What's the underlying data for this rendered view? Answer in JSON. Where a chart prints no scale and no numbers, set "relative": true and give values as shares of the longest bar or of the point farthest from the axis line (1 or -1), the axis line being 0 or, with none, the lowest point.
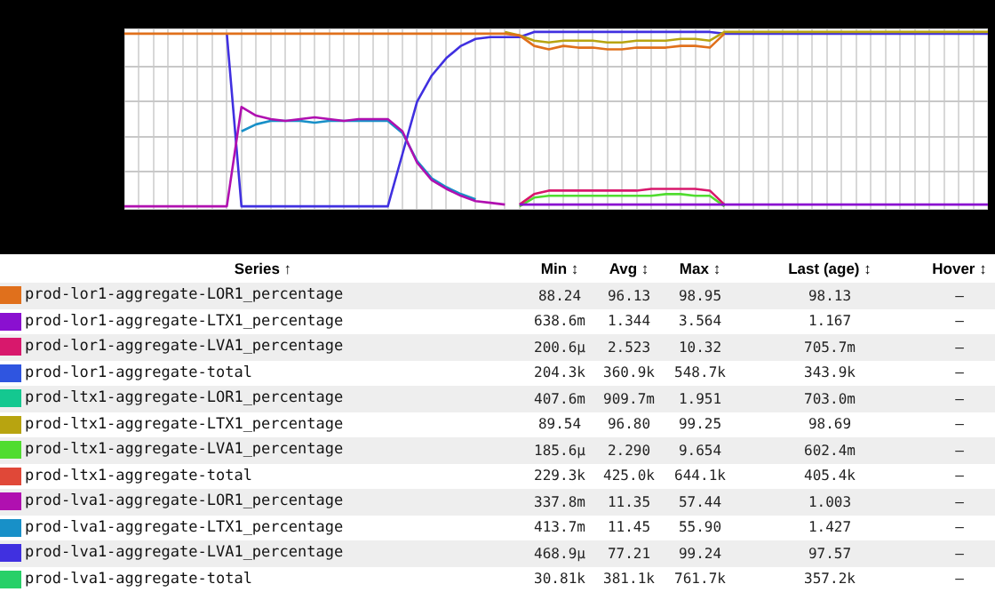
{
  "chart_data": {
    "type": "line",
    "relative": true,
    "grid": true,
    "legend": "bottom",
    "categories": [
      null,
      null,
      null,
      null,
      null,
      null,
      null,
      null,
      null,
      null,
      null,
      null,
      null,
      null,
      null,
      null,
      null,
      null,
      null,
      null,
      null,
      null,
      null,
      null,
      null,
      null,
      null,
      null,
      null,
      null,
      null,
      null,
      null,
      null,
      null,
      null,
      null,
      null,
      null,
      null,
      null,
      null,
      null,
      null,
      null,
      null,
      null,
      null,
      null,
      null,
      null,
      null,
      null,
      null,
      null,
      null,
      null,
      null,
      null,
      null
    ],
    "series": [
      {
        "name": "prod-lor1-aggregate-LOR1_percentage",
        "color": "#e0701c",
        "values": [
          0.99,
          0.99,
          0.99,
          0.99,
          0.99,
          0.99,
          0.99,
          0.99,
          0.99,
          0.99,
          0.99,
          0.99,
          0.99,
          0.99,
          0.99,
          0.99,
          0.99,
          0.99,
          0.99,
          0.99,
          0.99,
          0.99,
          0.99,
          0.99,
          0.99,
          0.99,
          0.99,
          0.98,
          0.92,
          0.9,
          0.92,
          0.91,
          0.91,
          0.9,
          0.9,
          0.91,
          0.91,
          0.91,
          0.92,
          0.92,
          0.91,
          0.99,
          null,
          null,
          null,
          null,
          null,
          null,
          null,
          null,
          null,
          null,
          null,
          null,
          null,
          null,
          null,
          null,
          null,
          null
        ]
      },
      {
        "name": "prod-lor1-aggregate-LTX1_percentage",
        "color": "#8a10d0",
        "values": [
          null,
          null,
          null,
          null,
          null,
          null,
          null,
          null,
          null,
          null,
          null,
          null,
          null,
          null,
          null,
          null,
          null,
          null,
          null,
          null,
          null,
          null,
          null,
          null,
          null,
          null,
          null,
          0.01,
          0.01,
          0.01,
          0.01,
          0.01,
          0.01,
          0.01,
          0.01,
          0.01,
          0.01,
          0.01,
          0.01,
          0.01,
          0.01,
          0.01,
          0.01,
          0.01,
          0.01,
          0.01,
          0.01,
          0.01,
          0.01,
          0.01,
          0.01,
          0.01,
          0.01,
          0.01,
          0.01,
          0.01,
          0.01,
          0.01,
          0.01,
          0.01
        ]
      },
      {
        "name": "prod-lor1-aggregate-LVA1_percentage",
        "color": "#d8186c",
        "values": [
          null,
          null,
          null,
          null,
          null,
          null,
          null,
          null,
          null,
          null,
          null,
          null,
          null,
          null,
          null,
          null,
          null,
          null,
          null,
          null,
          null,
          null,
          null,
          null,
          null,
          null,
          null,
          0.01,
          0.07,
          0.09,
          0.09,
          0.09,
          0.09,
          0.09,
          0.09,
          0.09,
          0.1,
          0.1,
          0.1,
          0.1,
          0.09,
          0.01,
          null,
          null,
          null,
          null,
          null,
          null,
          null,
          null,
          null,
          null,
          null,
          null,
          null,
          null,
          null,
          null,
          null,
          null
        ]
      },
      {
        "name": "prod-lor1-aggregate-total",
        "color": "#2f55e0",
        "values": [
          null,
          null,
          null,
          null,
          null,
          null,
          null,
          null,
          null,
          null,
          null,
          null,
          null,
          null,
          null,
          null,
          null,
          null,
          null,
          null,
          null,
          null,
          null,
          null,
          null,
          null,
          null,
          null,
          null,
          null,
          null,
          null,
          null,
          null,
          null,
          null,
          null,
          null,
          null,
          null,
          null,
          null,
          null,
          null,
          null,
          null,
          null,
          null,
          null,
          null,
          null,
          null,
          null,
          null,
          null,
          null,
          null,
          null,
          null,
          null
        ]
      },
      {
        "name": "prod-ltx1-aggregate-LOR1_percentage",
        "color": "#14c890",
        "values": [
          null,
          null,
          null,
          null,
          null,
          null,
          null,
          null,
          null,
          null,
          null,
          null,
          null,
          null,
          null,
          null,
          null,
          null,
          null,
          null,
          null,
          null,
          null,
          null,
          null,
          null,
          null,
          null,
          null,
          null,
          null,
          null,
          null,
          null,
          null,
          null,
          null,
          null,
          null,
          null,
          null,
          null,
          null,
          null,
          null,
          null,
          null,
          null,
          null,
          null,
          null,
          null,
          null,
          null,
          null,
          null,
          null,
          null,
          null,
          null
        ]
      },
      {
        "name": "prod-ltx1-aggregate-LTX1_percentage",
        "color": "#b8a410",
        "values": [
          null,
          null,
          null,
          null,
          null,
          null,
          null,
          null,
          null,
          null,
          null,
          null,
          null,
          null,
          null,
          null,
          null,
          null,
          null,
          null,
          null,
          null,
          null,
          null,
          null,
          null,
          1,
          0.98,
          0.95,
          0.94,
          0.95,
          0.95,
          0.95,
          0.94,
          0.94,
          0.95,
          0.95,
          0.95,
          0.96,
          0.96,
          0.95,
          1,
          1,
          1,
          1,
          1,
          1,
          1,
          1,
          1,
          1,
          1,
          1,
          1,
          1,
          1,
          1,
          1,
          1,
          1
        ]
      },
      {
        "name": "prod-ltx1-aggregate-LVA1_percentage",
        "color": "#50dc30",
        "values": [
          null,
          null,
          null,
          null,
          null,
          null,
          null,
          null,
          null,
          null,
          null,
          null,
          null,
          null,
          null,
          null,
          null,
          null,
          null,
          null,
          null,
          null,
          null,
          null,
          null,
          null,
          null,
          0,
          0.05,
          0.06,
          0.06,
          0.06,
          0.06,
          0.06,
          0.06,
          0.06,
          0.06,
          0.07,
          0.07,
          0.06,
          0.06,
          0,
          null,
          null,
          null,
          null,
          null,
          null,
          null,
          null,
          null,
          null,
          null,
          null,
          null,
          null,
          null,
          null,
          null,
          null
        ]
      },
      {
        "name": "prod-ltx1-aggregate-total",
        "color": "#e04838",
        "values": [
          null,
          null,
          null,
          null,
          null,
          null,
          null,
          null,
          null,
          null,
          null,
          null,
          null,
          null,
          null,
          null,
          null,
          null,
          null,
          null,
          null,
          null,
          null,
          null,
          null,
          null,
          null,
          null,
          null,
          null,
          null,
          null,
          null,
          null,
          null,
          null,
          null,
          null,
          null,
          null,
          null,
          null,
          null,
          null,
          null,
          null,
          null,
          null,
          null,
          null,
          null,
          null,
          null,
          null,
          null,
          null,
          null,
          null,
          null,
          null
        ]
      },
      {
        "name": "prod-lva1-aggregate-LOR1_percentage",
        "color": "#b010b0",
        "values": [
          0,
          0,
          0,
          0,
          0,
          0,
          0,
          0,
          0.57,
          0.52,
          0.5,
          0.49,
          0.5,
          0.51,
          0.5,
          0.49,
          0.5,
          0.5,
          0.5,
          0.43,
          0.25,
          0.15,
          0.1,
          0.06,
          0.03,
          0.02,
          0.01,
          null,
          null,
          null,
          null,
          null,
          null,
          null,
          null,
          null,
          null,
          null,
          null,
          null,
          null,
          null,
          null,
          null,
          null,
          null,
          null,
          null,
          null,
          null,
          null,
          null,
          null,
          null,
          null,
          null,
          null,
          null,
          null,
          null
        ]
      },
      {
        "name": "prod-lva1-aggregate-LTX1_percentage",
        "color": "#1890c8",
        "values": [
          null,
          null,
          null,
          null,
          null,
          null,
          null,
          null,
          0.43,
          0.47,
          0.49,
          0.49,
          0.49,
          0.48,
          0.49,
          0.49,
          0.49,
          0.49,
          0.49,
          0.42,
          0.26,
          0.16,
          0.11,
          0.07,
          0.04,
          null,
          null,
          null,
          null,
          null,
          null,
          null,
          null,
          null,
          null,
          null,
          null,
          null,
          null,
          null,
          null,
          null,
          null,
          null,
          null,
          null,
          null,
          null,
          null,
          null,
          null,
          null,
          null,
          null,
          null,
          null,
          null,
          null,
          null,
          null
        ]
      },
      {
        "name": "prod-lva1-aggregate-LVA1_percentage",
        "color": "#4030e0",
        "values": [
          null,
          null,
          null,
          null,
          null,
          null,
          null,
          0.99,
          0,
          0,
          0,
          0,
          0,
          0,
          0,
          0,
          0,
          0,
          0,
          0.3,
          0.6,
          0.75,
          0.85,
          0.92,
          0.96,
          0.97,
          0.97,
          0.97,
          1,
          1,
          1,
          1,
          1,
          1,
          1,
          1,
          1,
          1,
          1,
          1,
          1,
          0.99,
          0.99,
          0.99,
          0.99,
          0.99,
          0.99,
          0.99,
          0.99,
          0.99,
          0.99,
          0.99,
          0.99,
          0.99,
          0.99,
          0.99,
          0.99,
          0.99,
          0.99,
          0.99
        ]
      },
      {
        "name": "prod-lva1-aggregate-total",
        "color": "#28d068",
        "values": [
          null,
          null,
          null,
          null,
          null,
          null,
          null,
          null,
          null,
          null,
          null,
          null,
          null,
          null,
          null,
          null,
          null,
          null,
          null,
          null,
          null,
          null,
          null,
          null,
          null,
          null,
          null,
          null,
          null,
          null,
          null,
          null,
          null,
          null,
          null,
          null,
          null,
          null,
          null,
          null,
          null,
          null,
          null,
          null,
          null,
          null,
          null,
          null,
          null,
          null,
          null,
          null,
          null,
          null,
          null,
          null,
          null,
          null,
          null,
          null
        ]
      }
    ],
    "annotations": [
      "Series ↑",
      "Min ↕",
      "Avg ↕",
      "Max ↕",
      "Last (age) ↕",
      "Hover ↕",
      "88.24",
      "96.13",
      "98.95",
      "98.13",
      "—",
      "638.6m",
      "1.344",
      "3.564",
      "1.167",
      "—",
      "200.6μ",
      "2.523",
      "10.32",
      "705.7m",
      "—",
      "204.3k",
      "360.9k",
      "548.7k",
      "343.9k",
      "—",
      "407.6m",
      "909.7m",
      "1.951",
      "703.0m",
      "—",
      "89.54",
      "96.80",
      "99.25",
      "98.69",
      "—",
      "185.6μ",
      "2.290",
      "9.654",
      "602.4m",
      "—",
      "229.3k",
      "425.0k",
      "644.1k",
      "405.4k",
      "—",
      "337.8m",
      "11.35",
      "57.44",
      "1.003",
      "—",
      "413.7m",
      "11.45",
      "55.90",
      "1.427",
      "—",
      "468.9μ",
      "77.21",
      "99.24",
      "97.57",
      "—",
      "30.81k",
      "381.1k",
      "761.7k",
      "357.2k",
      "—"
    ]
  }
}
